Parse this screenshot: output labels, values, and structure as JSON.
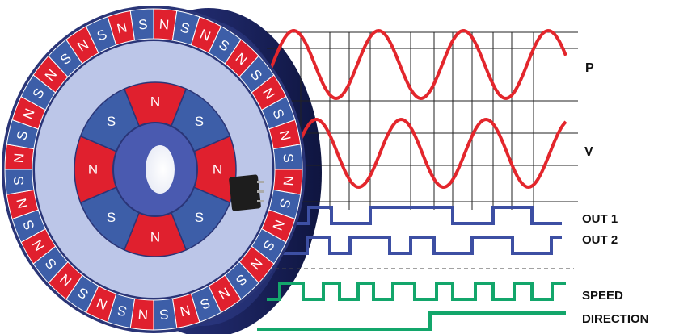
{
  "colors": {
    "north": "#e0202e",
    "south": "#3d5ea8",
    "ring_face": "#bcc6e8",
    "rim": "#26306a",
    "signal_sine": "#e3262c",
    "signal_square": "#3d4fa3",
    "signal_digital": "#13a66b",
    "grid": "#222222",
    "sensor": "#1d1d1d"
  },
  "magnet": {
    "outer_ring_poles": [
      "N",
      "S",
      "N",
      "S",
      "N",
      "S",
      "N",
      "S",
      "N",
      "S",
      "N",
      "S",
      "N",
      "S",
      "N",
      "S",
      "N",
      "S",
      "N",
      "S",
      "N",
      "S",
      "N",
      "S",
      "N",
      "S",
      "N",
      "S",
      "N",
      "S",
      "N",
      "S",
      "N",
      "S",
      "N",
      "S",
      "N",
      "S",
      "N",
      "S"
    ],
    "inner_ring_poles": [
      "N",
      "S",
      "N",
      "S",
      "N",
      "S",
      "N",
      "S"
    ]
  },
  "signals": {
    "p": {
      "label": "P"
    },
    "v": {
      "label": "V"
    },
    "out1": {
      "label": "OUT 1"
    },
    "out2": {
      "label": "OUT 2"
    },
    "speed": {
      "label": "SPEED"
    },
    "direction": {
      "label": "DIRECTION"
    }
  }
}
